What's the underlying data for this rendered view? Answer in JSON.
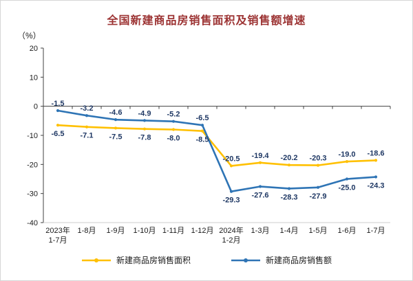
{
  "page": {
    "border_color": "#D6D6D6",
    "background": "#FFFFFF"
  },
  "chart_data": {
    "type": "line",
    "title": "全国新建商品房销售面积及销售额增速",
    "title_color": "#9C3333",
    "unit_label": "（%）",
    "ylim": [
      -40,
      20
    ],
    "yticks": [
      20,
      10,
      0,
      -10,
      -20,
      -30,
      -40
    ],
    "grid": false,
    "legend_position": "bottom",
    "axis_color": "#404040",
    "data_label_color": "#1F3864",
    "categories": [
      [
        "2023年",
        "1-7月"
      ],
      [
        "1-8月"
      ],
      [
        "1-9月"
      ],
      [
        "1-10月"
      ],
      [
        "1-11月"
      ],
      [
        "1-12月"
      ],
      [
        "2024年",
        "1-2月"
      ],
      [
        "1-3月"
      ],
      [
        "1-4月"
      ],
      [
        "1-5月"
      ],
      [
        "1-6月"
      ],
      [
        "1-7月"
      ]
    ],
    "series": [
      {
        "name": "新建商品房销售面积",
        "color": "#FFC000",
        "values": [
          -6.5,
          -7.1,
          -7.5,
          -7.8,
          -8.0,
          -8.5,
          -20.5,
          -19.4,
          -20.2,
          -20.3,
          -19.0,
          -18.6
        ]
      },
      {
        "name": "新建商品房销售额",
        "color": "#2E74B5",
        "values": [
          -1.5,
          -3.2,
          -4.6,
          -4.9,
          -5.2,
          -6.5,
          -29.3,
          -27.6,
          -28.3,
          -27.9,
          -25.0,
          -24.3
        ]
      }
    ]
  }
}
